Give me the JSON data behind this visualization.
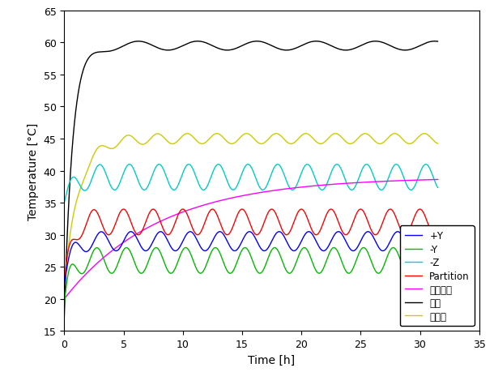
{
  "title": "",
  "xlabel": "Time [h]",
  "ylabel": "Temperature [°C]",
  "xlim": [
    0,
    35
  ],
  "ylim": [
    15,
    65
  ],
  "xticks": [
    0,
    5,
    10,
    15,
    20,
    25,
    30,
    35
  ],
  "yticks": [
    15,
    20,
    25,
    30,
    35,
    40,
    45,
    50,
    55,
    60,
    65
  ],
  "t_max": 31.5,
  "colors": {
    "+Y": "#0000ff",
    "-Y": "#00bb00",
    "-Z": "#00cccc",
    "Partition": "#ff0000",
    "battery": "#ff00ff",
    "wireless": "#000000",
    "board": "#cccc00"
  },
  "legend_labels": [
    "+Y",
    "-Y",
    "-Z",
    "Partition",
    "バッテリ",
    "無線",
    "ボード"
  ],
  "background": "#ffffff",
  "figsize": [
    6.1,
    4.6
  ],
  "dpi": 100
}
